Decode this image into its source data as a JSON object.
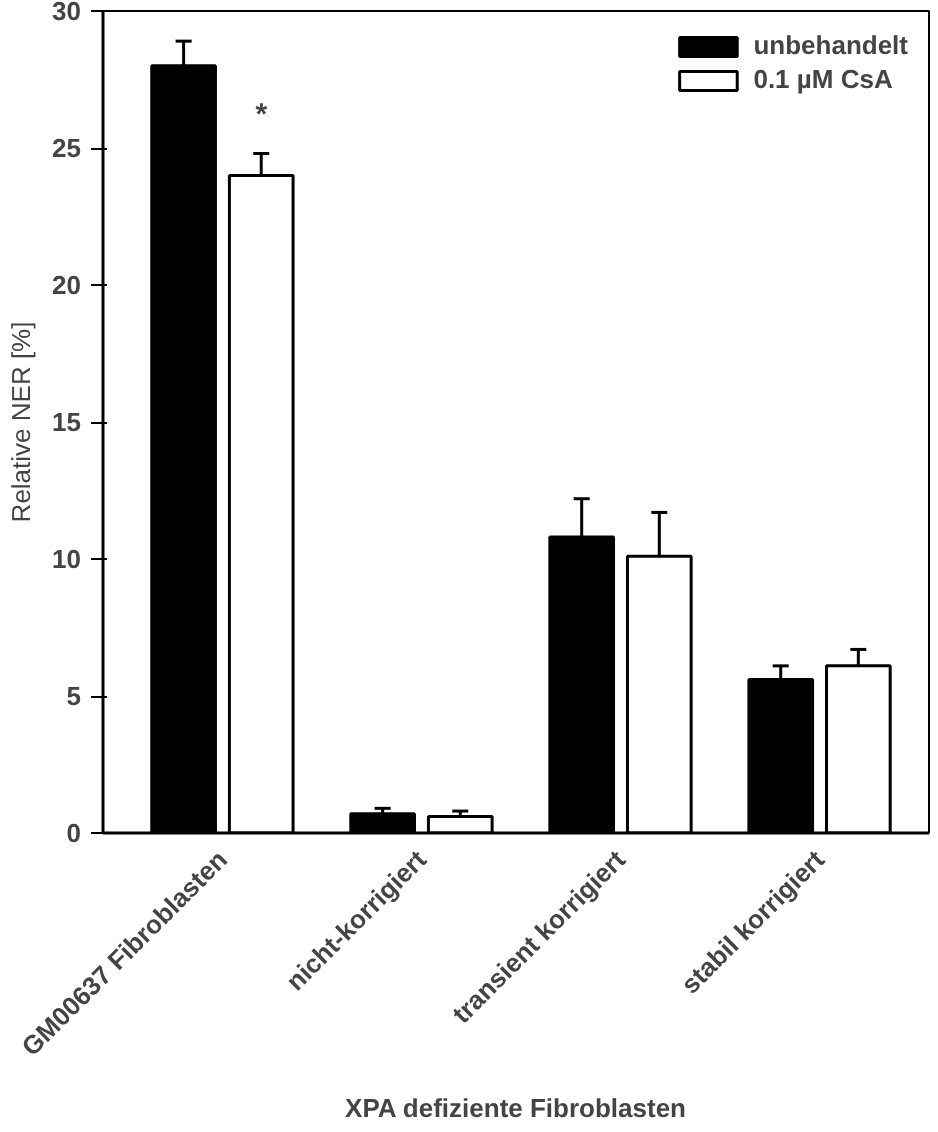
{
  "chart_data": {
    "type": "bar",
    "ylabel": "Relative NER [%]",
    "categories": [
      "GM00637 Fibroblasten",
      "nicht-korrigiert",
      "transient korrigiert",
      "stabil korrigiert"
    ],
    "series": [
      {
        "name": "unbehandelt",
        "color": "#000000",
        "values": [
          28.0,
          0.7,
          10.8,
          5.6
        ],
        "errors": [
          0.9,
          0.2,
          1.4,
          0.5
        ]
      },
      {
        "name": "0.1 µM CsA",
        "color": "#ffffff",
        "values": [
          24.0,
          0.6,
          10.1,
          6.1
        ],
        "errors": [
          0.8,
          0.2,
          1.6,
          0.6
        ]
      }
    ],
    "ylim": [
      0,
      30
    ],
    "yticks": [
      0,
      5,
      10,
      15,
      20,
      25,
      30
    ],
    "grid": false,
    "legend": "top right",
    "annotations": [
      {
        "text": "*",
        "x": "GM00637 Fibroblasten",
        "y": 25.6
      },
      "XPA defiziente Fibroblasten"
    ]
  }
}
